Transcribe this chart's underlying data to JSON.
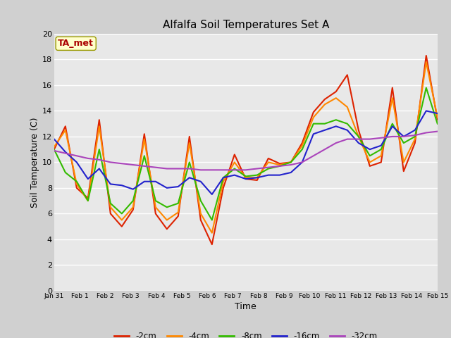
{
  "title": "Alfalfa Soil Temperatures Set A",
  "xlabel": "Time",
  "ylabel": "Soil Temperature (C)",
  "ylim": [
    0,
    20
  ],
  "xlim": [
    0,
    15
  ],
  "plot_bg_color": "#e8e8e8",
  "fig_bg_color": "#d0d0d0",
  "annotation_text": "TA_met",
  "annotation_bg": "#ffffcc",
  "annotation_border": "#999900",
  "annotation_text_color": "#aa0000",
  "xtick_labels": [
    "Jan 31",
    "Feb 1",
    "Feb 2",
    "Feb 3",
    "Feb 4",
    "Feb 5",
    "Feb 6",
    "Feb 7",
    "Feb 8",
    "Feb 9",
    "Feb 10",
    "Feb 11",
    "Feb 12",
    "Feb 13",
    "Feb 14",
    "Feb 15"
  ],
  "series_order": [
    "-2cm",
    "-4cm",
    "-8cm",
    "-16cm",
    "-32cm"
  ],
  "series": {
    "-2cm": {
      "color": "#dd2200",
      "lw": 1.5
    },
    "-4cm": {
      "color": "#ff8800",
      "lw": 1.5
    },
    "-8cm": {
      "color": "#33bb00",
      "lw": 1.5
    },
    "-16cm": {
      "color": "#2222cc",
      "lw": 1.5
    },
    "-32cm": {
      "color": "#aa44bb",
      "lw": 1.5
    }
  },
  "data": {
    "-2cm": [
      11.0,
      12.8,
      8.0,
      7.2,
      13.3,
      6.0,
      5.0,
      6.3,
      12.2,
      6.0,
      4.8,
      5.8,
      12.0,
      5.5,
      3.6,
      8.0,
      10.6,
      8.7,
      8.6,
      10.3,
      9.9,
      10.0,
      11.5,
      13.9,
      14.9,
      15.5,
      16.8,
      12.5,
      9.7,
      10.0,
      15.8,
      9.3,
      11.5,
      18.3,
      13.3
    ],
    "-4cm": [
      11.2,
      12.5,
      8.3,
      7.0,
      12.8,
      6.5,
      5.5,
      6.5,
      11.8,
      6.5,
      5.5,
      6.1,
      11.5,
      6.0,
      4.5,
      8.5,
      10.0,
      8.8,
      8.8,
      10.0,
      9.8,
      10.0,
      11.3,
      13.5,
      14.5,
      15.0,
      14.3,
      12.0,
      10.0,
      10.5,
      15.0,
      10.0,
      11.8,
      17.8,
      13.5
    ],
    "-8cm": [
      11.0,
      9.2,
      8.5,
      7.0,
      11.0,
      6.8,
      6.0,
      7.0,
      10.5,
      7.0,
      6.5,
      6.8,
      10.0,
      7.0,
      5.5,
      8.8,
      9.5,
      8.9,
      9.0,
      9.5,
      9.7,
      10.0,
      11.0,
      13.0,
      13.0,
      13.3,
      13.0,
      12.0,
      10.5,
      11.0,
      13.0,
      11.5,
      12.0,
      15.8,
      13.0
    ],
    "-16cm": [
      11.8,
      10.8,
      10.0,
      8.7,
      9.5,
      8.3,
      8.2,
      7.9,
      8.5,
      8.5,
      8.0,
      8.1,
      8.8,
      8.5,
      7.5,
      8.8,
      9.0,
      8.7,
      8.8,
      9.0,
      9.0,
      9.2,
      10.0,
      12.2,
      12.5,
      12.8,
      12.5,
      11.5,
      11.0,
      11.3,
      12.8,
      12.0,
      12.5,
      14.0,
      13.8
    ],
    "-32cm": [
      10.9,
      10.7,
      10.5,
      10.3,
      10.2,
      10.0,
      9.9,
      9.8,
      9.7,
      9.6,
      9.5,
      9.5,
      9.5,
      9.4,
      9.4,
      9.4,
      9.4,
      9.4,
      9.5,
      9.6,
      9.7,
      9.8,
      10.0,
      10.5,
      11.0,
      11.5,
      11.8,
      11.8,
      11.8,
      11.9,
      12.0,
      12.0,
      12.1,
      12.3,
      12.4
    ]
  }
}
